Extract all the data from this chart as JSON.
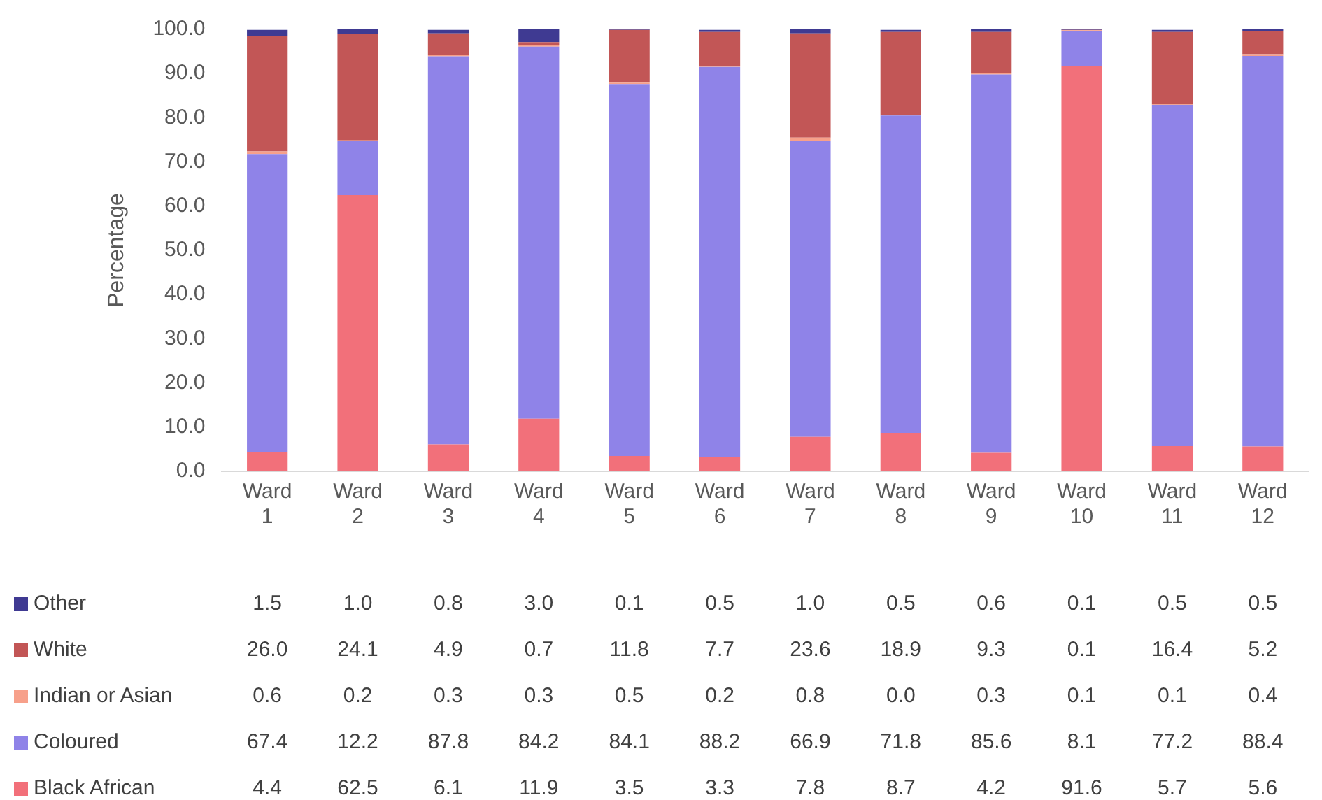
{
  "chart_data": {
    "type": "bar",
    "stacked": true,
    "ylabel": "Percentage",
    "categories": [
      "Ward 1",
      "Ward 2",
      "Ward 3",
      "Ward 4",
      "Ward 5",
      "Ward 6",
      "Ward 7",
      "Ward 8",
      "Ward 9",
      "Ward 10",
      "Ward 11",
      "Ward 12"
    ],
    "ylim": [
      0,
      100
    ],
    "yticks": [
      {
        "value": 0,
        "label": "0.0"
      },
      {
        "value": 10,
        "label": "10.0"
      },
      {
        "value": 20,
        "label": "20.0"
      },
      {
        "value": 30,
        "label": "30.0"
      },
      {
        "value": 40,
        "label": "40.0"
      },
      {
        "value": 50,
        "label": "50.0"
      },
      {
        "value": 60,
        "label": "60.0"
      },
      {
        "value": 70,
        "label": "70.0"
      },
      {
        "value": 80,
        "label": "80.0"
      },
      {
        "value": 90,
        "label": "90.0"
      },
      {
        "value": 100,
        "label": "100.0"
      }
    ],
    "grid": false,
    "legend": "bottom",
    "series": [
      {
        "name": "Black African",
        "color": "#f2707a",
        "values": [
          4.4,
          62.5,
          6.1,
          11.9,
          3.5,
          3.3,
          7.8,
          8.7,
          4.2,
          91.6,
          5.7,
          5.6
        ],
        "value_labels": [
          "4.4",
          "62.5",
          "6.1",
          "11.9",
          "3.5",
          "3.3",
          "7.8",
          "8.7",
          "4.2",
          "91.6",
          "5.7",
          "5.6"
        ]
      },
      {
        "name": "Coloured",
        "color": "#8f83e8",
        "values": [
          67.4,
          12.2,
          87.8,
          84.2,
          84.1,
          88.2,
          66.9,
          71.8,
          85.6,
          8.1,
          77.2,
          88.4
        ],
        "value_labels": [
          "67.4",
          "12.2",
          "87.8",
          "84.2",
          "84.1",
          "88.2",
          "66.9",
          "71.8",
          "85.6",
          "8.1",
          "77.2",
          "88.4"
        ]
      },
      {
        "name": "Indian or Asian",
        "color": "#f7a08a",
        "values": [
          0.6,
          0.2,
          0.3,
          0.3,
          0.5,
          0.2,
          0.8,
          0.0,
          0.3,
          0.1,
          0.1,
          0.4
        ],
        "value_labels": [
          "0.6",
          "0.2",
          "0.3",
          "0.3",
          "0.5",
          "0.2",
          "0.8",
          "0.0",
          "0.3",
          "0.1",
          "0.1",
          "0.4"
        ]
      },
      {
        "name": "White",
        "color": "#c25656",
        "values": [
          26.0,
          24.1,
          4.9,
          0.7,
          11.8,
          7.7,
          23.6,
          18.9,
          9.3,
          0.1,
          16.4,
          5.2
        ],
        "value_labels": [
          "26.0",
          "24.1",
          "4.9",
          "0.7",
          "11.8",
          "7.7",
          "23.6",
          "18.9",
          "9.3",
          "0.1",
          "16.4",
          "5.2"
        ]
      },
      {
        "name": "Other",
        "color": "#3f3a92",
        "values": [
          1.5,
          1.0,
          0.8,
          3.0,
          0.1,
          0.5,
          1.0,
          0.5,
          0.6,
          0.1,
          0.5,
          0.5
        ],
        "value_labels": [
          "1.5",
          "1.0",
          "0.8",
          "3.0",
          "0.1",
          "0.5",
          "1.0",
          "0.5",
          "0.6",
          "0.1",
          "0.5",
          "0.5"
        ]
      }
    ]
  }
}
